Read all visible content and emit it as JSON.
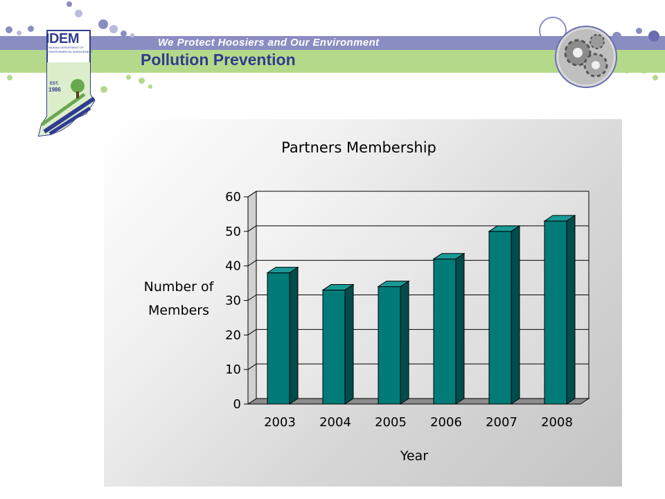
{
  "header": {
    "tagline": "We Protect Hoosiers and Our Environment",
    "section_title": "Pollution Prevention",
    "logo": {
      "name": "IDEM",
      "lines": [
        "INDIANA DEPARTMENT OF",
        "ENVIRONMENTAL MANAGEMENT"
      ],
      "est": "EST.",
      "year": "1986"
    }
  },
  "colors": {
    "purple_band": "#8a8dc2",
    "green_band": "#b5d98a",
    "title_blue": "#2f3c8f",
    "bar_face": "#007b78",
    "bar_side": "#004d4b",
    "bar_top": "#1a9a96"
  },
  "chart_data": {
    "type": "bar",
    "title": "Partners Membership",
    "xlabel": "Year",
    "ylabel": "Number of Members",
    "ylabel_lines": [
      "Number of",
      "Members"
    ],
    "categories": [
      "2003",
      "2004",
      "2005",
      "2006",
      "2007",
      "2008"
    ],
    "values": [
      38,
      33,
      34,
      42,
      50,
      53
    ],
    "ylim": [
      0,
      60
    ],
    "yticks": [
      0,
      10,
      20,
      30,
      40,
      50,
      60
    ],
    "grid": true,
    "legend": "none",
    "style": "3d"
  }
}
